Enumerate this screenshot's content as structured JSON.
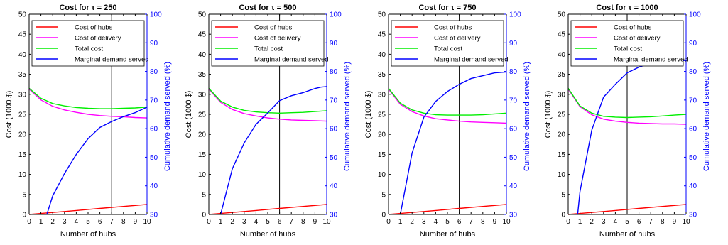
{
  "chart_data": [
    {
      "type": "line",
      "title": "Cost for τ = 250",
      "xlabel": "Number of hubs",
      "ylabel": "Cost (1000 $)",
      "ylabel_right": "Cumulative demand served (%)",
      "xlim": [
        0,
        10
      ],
      "ylim": [
        0,
        50
      ],
      "ylim_right": [
        30,
        100
      ],
      "xticks": [
        "0",
        "1",
        "2",
        "3",
        "4",
        "5",
        "6",
        "7",
        "8",
        "9",
        "10"
      ],
      "yticks": [
        "0",
        "5",
        "10",
        "15",
        "20",
        "25",
        "30",
        "35",
        "40",
        "45",
        "50"
      ],
      "yticks_right": [
        "30",
        "40",
        "50",
        "60",
        "70",
        "80",
        "90",
        "100"
      ],
      "vline_x": 7,
      "legend_position": "top-left",
      "x": [
        0,
        1,
        2,
        3,
        4,
        5,
        6,
        7,
        8,
        9,
        10
      ],
      "series": [
        {
          "name": "Cost of hubs",
          "color": "#ff0000",
          "axis": "left",
          "values": [
            0,
            0.25,
            0.5,
            0.75,
            1,
            1.25,
            1.5,
            1.75,
            2,
            2.25,
            2.5
          ]
        },
        {
          "name": "Cost of delivery",
          "color": "#ff00ff",
          "axis": "left",
          "values": [
            31.3,
            28.6,
            27.0,
            26.1,
            25.5,
            25.0,
            24.7,
            24.5,
            24.4,
            24.2,
            24.1
          ]
        },
        {
          "name": "Total cost",
          "color": "#00ee00",
          "axis": "left",
          "values": [
            31.5,
            29.0,
            27.7,
            27.1,
            26.7,
            26.5,
            26.4,
            26.4,
            26.5,
            26.6,
            26.8
          ]
        },
        {
          "name": "Marginal demand served",
          "color": "#0000ff",
          "axis": "right",
          "x": [
            1.5,
            2,
            3,
            4,
            5,
            6,
            7,
            8,
            9,
            10
          ],
          "values": [
            30,
            36.5,
            44.3,
            51,
            56.5,
            60.4,
            62.5,
            64.2,
            65.6,
            67.5
          ]
        }
      ]
    },
    {
      "type": "line",
      "title": "Cost for τ = 500",
      "xlabel": "Number of hubs",
      "ylabel": "Cost (1000 $)",
      "ylabel_right": "Cumulative demand served (%)",
      "xlim": [
        0,
        10
      ],
      "ylim": [
        0,
        50
      ],
      "ylim_right": [
        30,
        100
      ],
      "xticks": [
        "0",
        "1",
        "2",
        "3",
        "4",
        "5",
        "6",
        "7",
        "8",
        "9",
        "10"
      ],
      "yticks": [
        "0",
        "5",
        "10",
        "15",
        "20",
        "25",
        "30",
        "35",
        "40",
        "45",
        "50"
      ],
      "yticks_right": [
        "30",
        "40",
        "50",
        "60",
        "70",
        "80",
        "90",
        "100"
      ],
      "vline_x": 6,
      "legend_position": "top-left",
      "x": [
        0,
        1,
        2,
        3,
        4,
        5,
        6,
        7,
        8,
        9,
        10
      ],
      "series": [
        {
          "name": "Cost of hubs",
          "color": "#ff0000",
          "axis": "left",
          "values": [
            0,
            0.25,
            0.5,
            0.75,
            1,
            1.25,
            1.5,
            1.75,
            2,
            2.25,
            2.5
          ]
        },
        {
          "name": "Cost of delivery",
          "color": "#ff00ff",
          "axis": "left",
          "values": [
            31.3,
            28.0,
            26.2,
            25.2,
            24.6,
            24.1,
            23.8,
            23.6,
            23.5,
            23.4,
            23.3
          ]
        },
        {
          "name": "Total cost",
          "color": "#00ee00",
          "axis": "left",
          "values": [
            31.5,
            28.3,
            26.8,
            26.0,
            25.6,
            25.4,
            25.3,
            25.4,
            25.5,
            25.7,
            25.9
          ]
        },
        {
          "name": "Marginal demand served",
          "color": "#0000ff",
          "axis": "right",
          "x": [
            1,
            2,
            3,
            4,
            5,
            6,
            7,
            8,
            9,
            9.5,
            10
          ],
          "values": [
            30,
            46,
            55,
            61.5,
            65.5,
            69.8,
            71.5,
            72.6,
            74,
            74.5,
            74.7
          ]
        }
      ]
    },
    {
      "type": "line",
      "title": "Cost for τ = 750",
      "xlabel": "Number of hubs",
      "ylabel": "Cost (1000 $)",
      "ylabel_right": "Cumulative demand served (%)",
      "xlim": [
        0,
        10
      ],
      "ylim": [
        0,
        50
      ],
      "ylim_right": [
        30,
        100
      ],
      "xticks": [
        "0",
        "1",
        "2",
        "3",
        "4",
        "5",
        "6",
        "7",
        "8",
        "9",
        "10"
      ],
      "yticks": [
        "0",
        "5",
        "10",
        "15",
        "20",
        "25",
        "30",
        "35",
        "40",
        "45",
        "50"
      ],
      "yticks_right": [
        "30",
        "40",
        "50",
        "60",
        "70",
        "80",
        "90",
        "100"
      ],
      "vline_x": 6,
      "legend_position": "top-left",
      "x": [
        0,
        1,
        2,
        3,
        4,
        5,
        6,
        7,
        8,
        9,
        10
      ],
      "series": [
        {
          "name": "Cost of hubs",
          "color": "#ff0000",
          "axis": "left",
          "values": [
            0,
            0.25,
            0.5,
            0.75,
            1,
            1.25,
            1.5,
            1.75,
            2,
            2.25,
            2.5
          ]
        },
        {
          "name": "Cost of delivery",
          "color": "#ff00ff",
          "axis": "left",
          "values": [
            31.3,
            27.5,
            25.7,
            24.6,
            23.9,
            23.6,
            23.3,
            23.1,
            23.0,
            22.9,
            22.8
          ]
        },
        {
          "name": "Total cost",
          "color": "#00ee00",
          "axis": "left",
          "values": [
            31.5,
            27.8,
            26.1,
            25.3,
            24.9,
            24.8,
            24.8,
            24.8,
            24.9,
            25.1,
            25.3
          ]
        },
        {
          "name": "Marginal demand served",
          "color": "#0000ff",
          "axis": "right",
          "x": [
            1,
            2,
            3,
            4,
            5,
            6,
            7,
            8,
            9,
            10
          ],
          "values": [
            30,
            51.5,
            64,
            69.5,
            73,
            75.5,
            77.5,
            78.5,
            79.5,
            79.8
          ]
        }
      ]
    },
    {
      "type": "line",
      "title": "Cost for τ = 1000",
      "xlabel": "Number of hubs",
      "ylabel": "Cost (1000 $)",
      "ylabel_right": "Cumulative demand served (%)",
      "xlim": [
        0,
        10
      ],
      "ylim": [
        0,
        50
      ],
      "ylim_right": [
        30,
        100
      ],
      "xticks": [
        "0",
        "1",
        "2",
        "3",
        "4",
        "5",
        "6",
        "7",
        "8",
        "9",
        "10"
      ],
      "yticks": [
        "0",
        "5",
        "10",
        "15",
        "20",
        "25",
        "30",
        "35",
        "40",
        "45",
        "50"
      ],
      "yticks_right": [
        "30",
        "40",
        "50",
        "60",
        "70",
        "80",
        "90",
        "100"
      ],
      "vline_x": 5,
      "legend_position": "top-left",
      "x": [
        0,
        1,
        2,
        3,
        4,
        5,
        6,
        7,
        8,
        9,
        10
      ],
      "series": [
        {
          "name": "Cost of hubs",
          "color": "#ff0000",
          "axis": "left",
          "values": [
            0,
            0.25,
            0.5,
            0.75,
            1,
            1.25,
            1.5,
            1.75,
            2,
            2.25,
            2.5
          ]
        },
        {
          "name": "Cost of delivery",
          "color": "#ff00ff",
          "axis": "left",
          "values": [
            31.3,
            26.9,
            24.9,
            23.8,
            23.3,
            23.0,
            22.8,
            22.7,
            22.6,
            22.6,
            22.5
          ]
        },
        {
          "name": "Total cost",
          "color": "#00ee00",
          "axis": "left",
          "values": [
            31.5,
            27.1,
            25.3,
            24.5,
            24.3,
            24.2,
            24.3,
            24.4,
            24.6,
            24.8,
            25.0
          ]
        },
        {
          "name": "Marginal demand served",
          "color": "#0000ff",
          "axis": "right",
          "x": [
            0.8,
            1,
            2,
            3,
            4,
            5,
            6,
            7,
            8,
            9,
            10
          ],
          "values": [
            30,
            38,
            59.5,
            71,
            75.5,
            79.5,
            81.5,
            82.8,
            83.5,
            84,
            83.8
          ]
        }
      ]
    }
  ]
}
